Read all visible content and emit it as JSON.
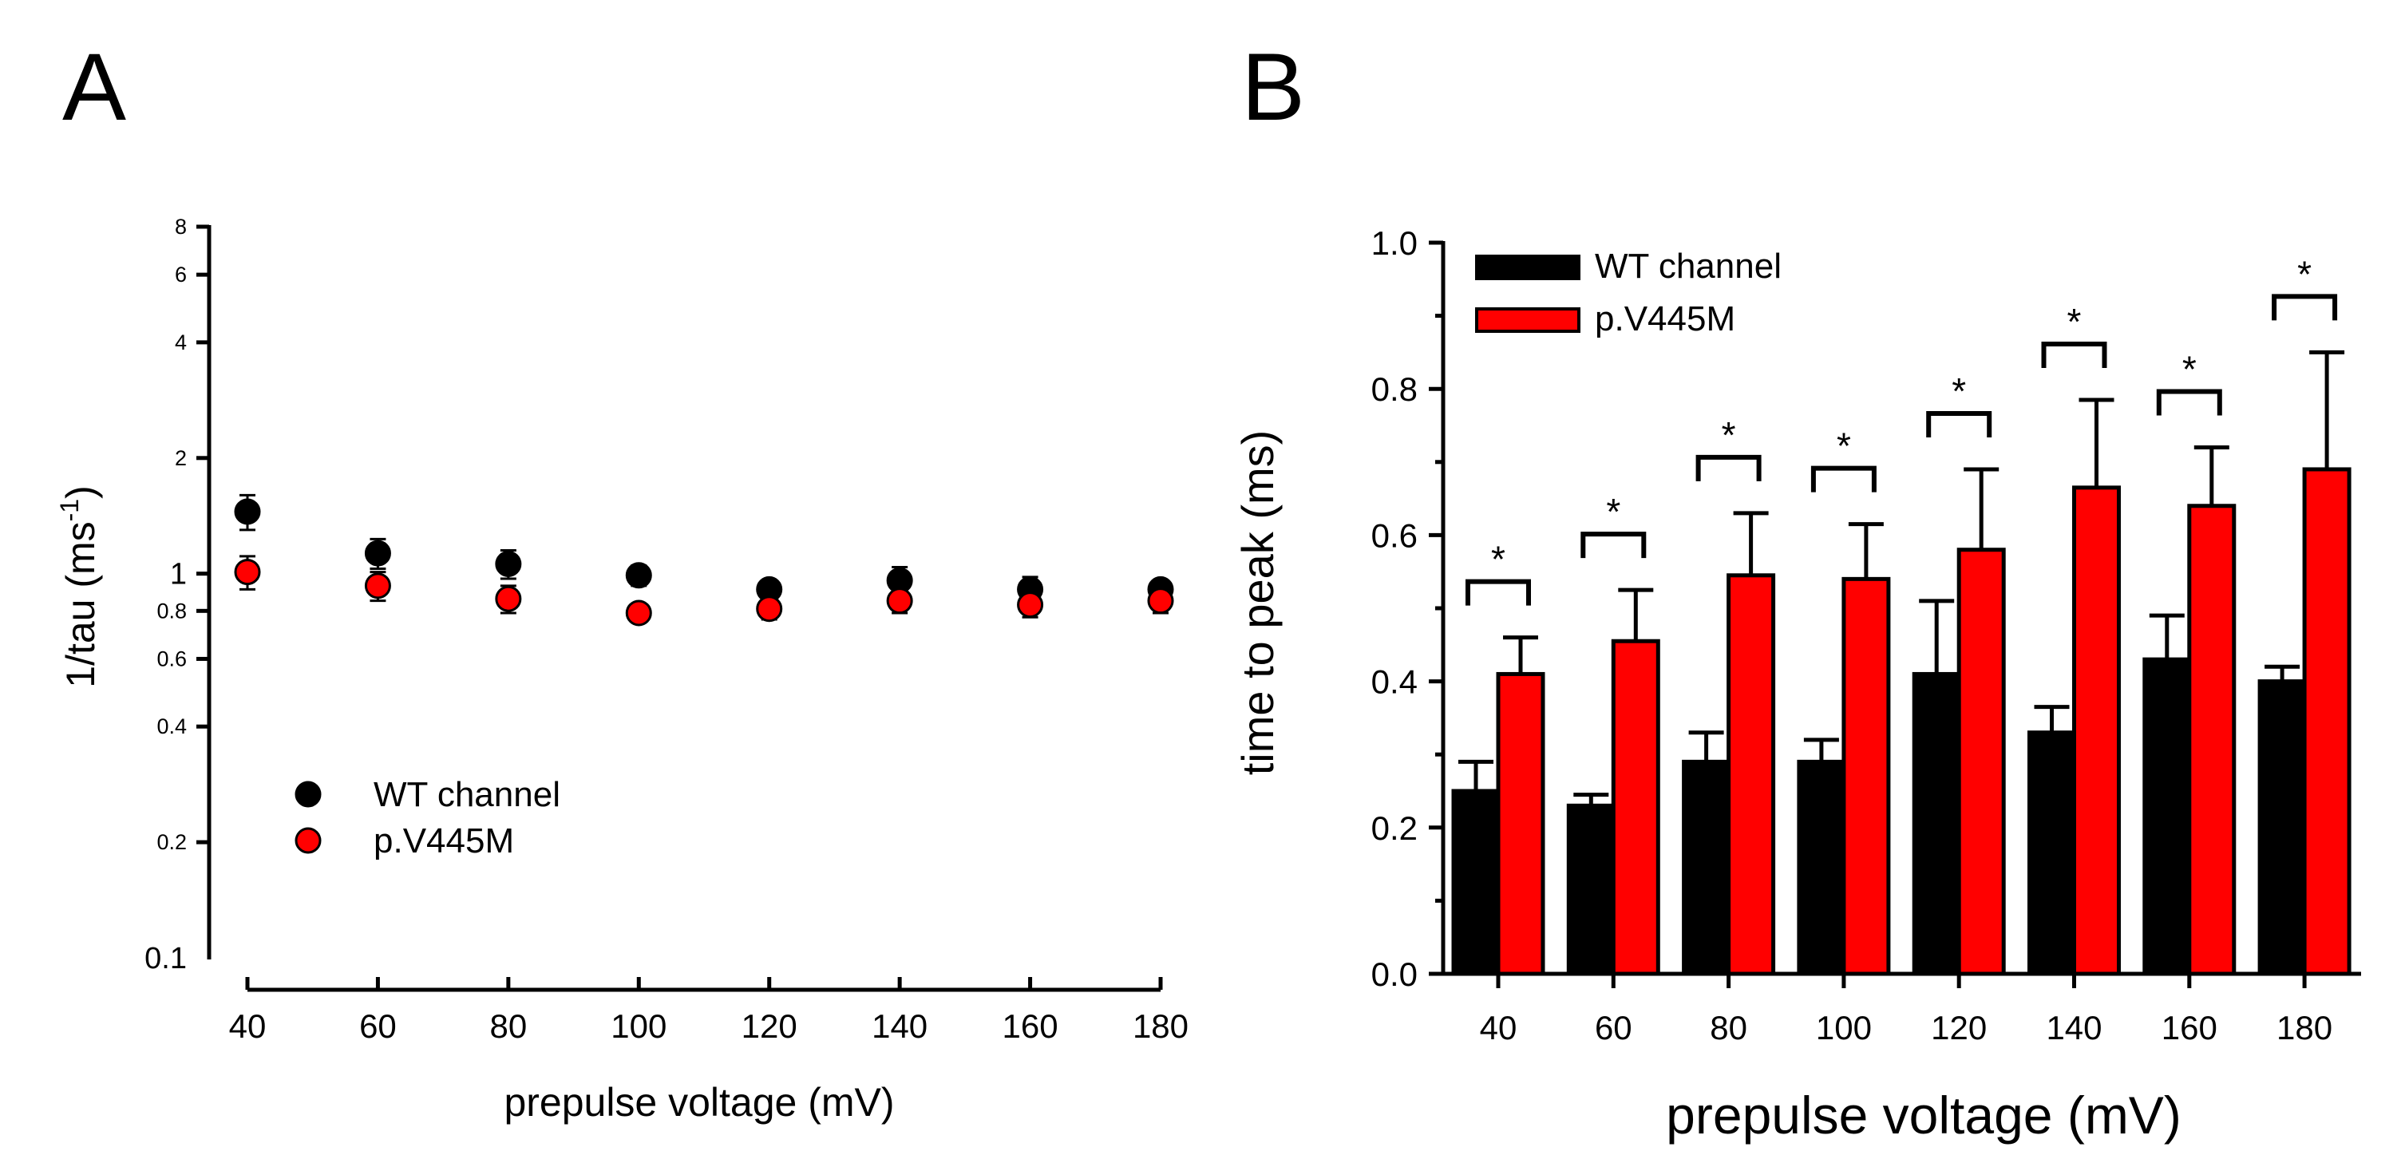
{
  "panels": {
    "a_label": "A",
    "b_label": "B"
  },
  "colors": {
    "wt": "#000000",
    "mut": "#ff0000",
    "text": "#000000"
  },
  "chart_data": [
    {
      "type": "scatter",
      "panel": "A",
      "xlabel": "prepulse voltage (mV)",
      "ylabel": "1/tau (ms",
      "ylabel_sup": "-1",
      "ylabel_close": ")",
      "yscale": "log",
      "ylim": [
        0.1,
        8
      ],
      "xlim": [
        40,
        180
      ],
      "x_ticks": [
        40,
        60,
        80,
        100,
        120,
        140,
        160,
        180
      ],
      "y_ticks": [
        {
          "v": 0.1,
          "label": "0.1",
          "major": true
        },
        {
          "v": 0.2,
          "label": "0.2",
          "major": false
        },
        {
          "v": 0.4,
          "label": "0.4",
          "major": false
        },
        {
          "v": 0.6,
          "label": "0.6",
          "major": false
        },
        {
          "v": 0.8,
          "label": "0.8",
          "major": false
        },
        {
          "v": 1,
          "label": "1",
          "major": true
        },
        {
          "v": 2,
          "label": "2",
          "major": false
        },
        {
          "v": 4,
          "label": "4",
          "major": false
        },
        {
          "v": 6,
          "label": "6",
          "major": false
        },
        {
          "v": 8,
          "label": "8",
          "major": false
        }
      ],
      "legend": [
        {
          "name": "WT channel",
          "color": "#000000"
        },
        {
          "name": "p.V445M",
          "color": "#ff0000"
        }
      ],
      "series": [
        {
          "name": "WT channel",
          "x": [
            40,
            60,
            80,
            100,
            120,
            140,
            160,
            180
          ],
          "y": [
            1.45,
            1.13,
            1.06,
            0.99,
            0.91,
            0.96,
            0.91,
            0.91
          ],
          "err": [
            0.15,
            0.1,
            0.09,
            0.06,
            0.05,
            0.08,
            0.07,
            0.04
          ]
        },
        {
          "name": "p.V445M",
          "x": [
            40,
            60,
            80,
            100,
            120,
            140,
            160,
            180
          ],
          "y": [
            1.01,
            0.93,
            0.86,
            0.79,
            0.81,
            0.85,
            0.83,
            0.85
          ],
          "err": [
            0.1,
            0.08,
            0.07,
            0.04,
            0.05,
            0.06,
            0.06,
            0.06
          ]
        }
      ]
    },
    {
      "type": "bar",
      "panel": "B",
      "xlabel": "prepulse voltage (mV)",
      "ylabel": "time to peak  (ms)",
      "ylim": [
        0,
        1.0
      ],
      "y_ticks": [
        "0.0",
        "0.2",
        "0.4",
        "0.6",
        "0.8",
        "1.0"
      ],
      "categories": [
        "40",
        "60",
        "80",
        "100",
        "120",
        "140",
        "160",
        "180"
      ],
      "significance": [
        "*",
        "*",
        "*",
        "*",
        "*",
        "*",
        "*",
        "*"
      ],
      "legend": [
        {
          "name": "WT channel",
          "color": "#000000"
        },
        {
          "name": "p.V445M",
          "color": "#ff0000"
        }
      ],
      "series": [
        {
          "name": "WT channel",
          "values": [
            0.25,
            0.23,
            0.29,
            0.29,
            0.41,
            0.33,
            0.43,
            0.4
          ],
          "err": [
            0.04,
            0.015,
            0.04,
            0.03,
            0.1,
            0.035,
            0.06,
            0.02
          ]
        },
        {
          "name": "p.V445M",
          "values": [
            0.41,
            0.455,
            0.545,
            0.54,
            0.58,
            0.665,
            0.64,
            0.69
          ],
          "err": [
            0.05,
            0.07,
            0.085,
            0.075,
            0.11,
            0.12,
            0.08,
            0.16
          ]
        }
      ]
    }
  ]
}
